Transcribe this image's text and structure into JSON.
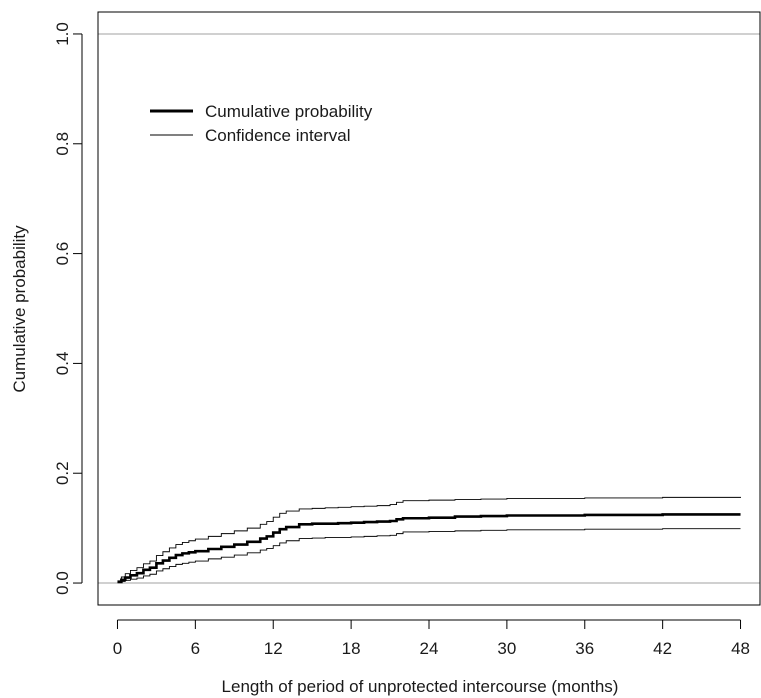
{
  "chart_data": {
    "type": "line",
    "title": "",
    "xlabel": "Length of period of unprotected intercourse (months)",
    "ylabel": "Cumulative probability",
    "xlim": [
      -1.5,
      49.5
    ],
    "ylim": [
      -0.04,
      1.04
    ],
    "xticks": [
      0,
      6,
      12,
      18,
      24,
      30,
      36,
      42,
      48
    ],
    "yticks": [
      0.0,
      0.2,
      0.4,
      0.6,
      0.8,
      1.0
    ],
    "xtick_labels": [
      "0",
      "6",
      "12",
      "18",
      "24",
      "30",
      "36",
      "42",
      "48"
    ],
    "ytick_labels": [
      "0.0",
      "0.2",
      "0.4",
      "0.6",
      "0.8",
      "1.0"
    ],
    "reference_lines": [
      0.0,
      1.0
    ],
    "grid": false,
    "legend_position": "top-left",
    "step": true,
    "series": [
      {
        "name": "Cumulative probability",
        "color": "#000000",
        "weight": "thick",
        "x": [
          0,
          0.3,
          0.6,
          1.0,
          1.5,
          2.0,
          2.5,
          3.0,
          3.5,
          4.0,
          4.5,
          5.0,
          5.5,
          6.0,
          7.0,
          8.0,
          9.0,
          10.0,
          11.0,
          11.5,
          12.0,
          12.5,
          13.0,
          14.0,
          15.0,
          16.0,
          17.0,
          18.0,
          19.0,
          20.0,
          21.0,
          21.5,
          22.0,
          24.0,
          26.0,
          28.0,
          30.0,
          36.0,
          42.0,
          48.0
        ],
        "y": [
          0.002,
          0.006,
          0.01,
          0.014,
          0.018,
          0.024,
          0.028,
          0.036,
          0.041,
          0.046,
          0.051,
          0.054,
          0.056,
          0.058,
          0.062,
          0.066,
          0.07,
          0.075,
          0.081,
          0.085,
          0.092,
          0.098,
          0.102,
          0.107,
          0.108,
          0.108,
          0.109,
          0.11,
          0.111,
          0.112,
          0.113,
          0.116,
          0.118,
          0.119,
          0.121,
          0.122,
          0.123,
          0.124,
          0.125,
          0.125
        ]
      },
      {
        "name": "Confidence interval",
        "color": "#000000",
        "weight": "thin",
        "x": [
          0,
          0.3,
          0.6,
          1.0,
          1.5,
          2.0,
          2.5,
          3.0,
          3.5,
          4.0,
          4.5,
          5.0,
          5.5,
          6.0,
          7.0,
          8.0,
          9.0,
          10.0,
          11.0,
          11.5,
          12.0,
          12.5,
          13.0,
          14.0,
          15.0,
          16.0,
          17.0,
          18.0,
          19.0,
          20.0,
          21.0,
          21.5,
          22.0,
          24.0,
          26.0,
          28.0,
          30.0,
          36.0,
          42.0,
          48.0
        ],
        "y": [
          0.004,
          0.011,
          0.017,
          0.023,
          0.028,
          0.035,
          0.04,
          0.05,
          0.057,
          0.064,
          0.07,
          0.074,
          0.077,
          0.08,
          0.085,
          0.09,
          0.095,
          0.1,
          0.107,
          0.112,
          0.12,
          0.127,
          0.131,
          0.135,
          0.136,
          0.137,
          0.138,
          0.139,
          0.14,
          0.141,
          0.143,
          0.147,
          0.15,
          0.151,
          0.152,
          0.153,
          0.154,
          0.155,
          0.156,
          0.157
        ]
      },
      {
        "name": "Confidence interval",
        "color": "#000000",
        "weight": "thin",
        "x": [
          0,
          0.3,
          0.6,
          1.0,
          1.5,
          2.0,
          2.5,
          3.0,
          3.5,
          4.0,
          4.5,
          5.0,
          5.5,
          6.0,
          7.0,
          8.0,
          9.0,
          10.0,
          11.0,
          11.5,
          12.0,
          12.5,
          13.0,
          14.0,
          15.0,
          16.0,
          17.0,
          18.0,
          19.0,
          20.0,
          21.0,
          21.5,
          22.0,
          24.0,
          26.0,
          28.0,
          30.0,
          36.0,
          42.0,
          48.0
        ],
        "y": [
          0.001,
          0.003,
          0.005,
          0.007,
          0.009,
          0.013,
          0.016,
          0.022,
          0.026,
          0.03,
          0.034,
          0.036,
          0.038,
          0.04,
          0.044,
          0.047,
          0.051,
          0.055,
          0.06,
          0.063,
          0.068,
          0.073,
          0.077,
          0.081,
          0.082,
          0.083,
          0.083,
          0.084,
          0.085,
          0.086,
          0.087,
          0.09,
          0.093,
          0.094,
          0.095,
          0.096,
          0.097,
          0.098,
          0.099,
          0.099
        ]
      }
    ],
    "legend": {
      "entries": [
        "Cumulative probability",
        "Confidence interval"
      ]
    }
  }
}
